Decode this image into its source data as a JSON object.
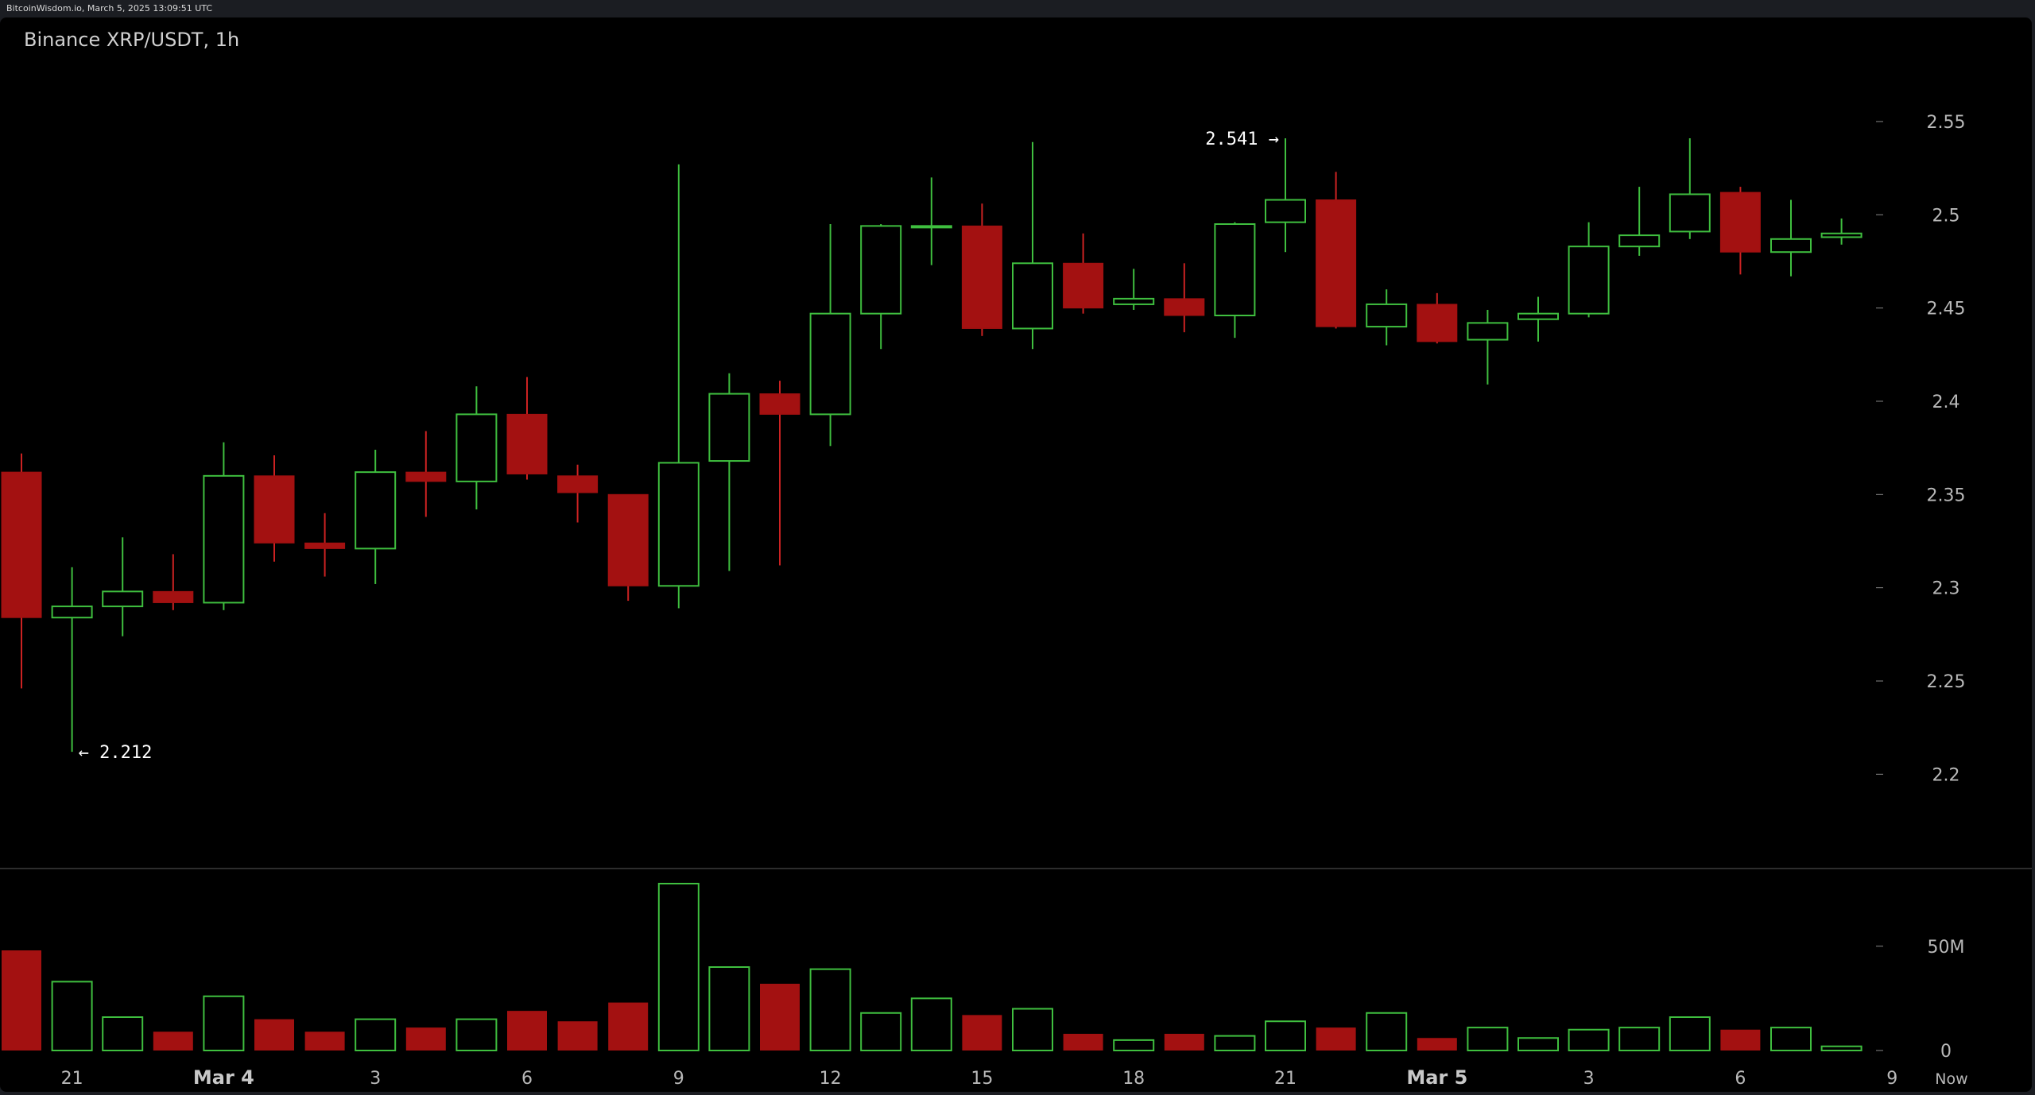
{
  "header": {
    "source": "BitcoinWisdom.io, March 5, 2025 13:09:51 UTC"
  },
  "chart_data": {
    "type": "candlestick",
    "title": "Binance XRP/USDT, 1h",
    "colors": {
      "up": "#3fbf3f",
      "down": "#a31111",
      "down_wick": "#cc2222",
      "axis_text": "#b8b8b8",
      "background": "#000000"
    },
    "ylim": [
      2.175,
      2.57
    ],
    "price_ticks": [
      {
        "value": 2.55,
        "label": "2.55"
      },
      {
        "value": 2.5,
        "label": "2.5"
      },
      {
        "value": 2.45,
        "label": "2.45"
      },
      {
        "value": 2.4,
        "label": "2.4"
      },
      {
        "value": 2.35,
        "label": "2.35"
      },
      {
        "value": 2.3,
        "label": "2.3"
      },
      {
        "value": 2.25,
        "label": "2.25"
      },
      {
        "value": 2.2,
        "label": "2.2"
      }
    ],
    "volume_ylim": [
      0,
      80
    ],
    "volume_ticks": [
      {
        "value": 50,
        "label": "50M"
      },
      {
        "value": 0,
        "label": "0"
      }
    ],
    "x_ticks": [
      {
        "index": 1,
        "label": "21",
        "bold": false
      },
      {
        "index": 4,
        "label": "Mar 4",
        "bold": true
      },
      {
        "index": 7,
        "label": "3",
        "bold": false
      },
      {
        "index": 10,
        "label": "6",
        "bold": false
      },
      {
        "index": 13,
        "label": "9",
        "bold": false
      },
      {
        "index": 16,
        "label": "12",
        "bold": false
      },
      {
        "index": 19,
        "label": "15",
        "bold": false
      },
      {
        "index": 22,
        "label": "18",
        "bold": false
      },
      {
        "index": 25,
        "label": "21",
        "bold": false
      },
      {
        "index": 28,
        "label": "Mar 5",
        "bold": true
      },
      {
        "index": 31,
        "label": "3",
        "bold": false
      },
      {
        "index": 34,
        "label": "6",
        "bold": false
      },
      {
        "index": 37,
        "label": "9",
        "bold": false
      }
    ],
    "now_label": "Now",
    "annotations": [
      {
        "index": 25,
        "value": 2.541,
        "text": "2.541 →",
        "side": "left"
      },
      {
        "index": 1,
        "value": 2.212,
        "text": "← 2.212",
        "side": "right"
      }
    ],
    "candles": [
      {
        "o": 2.362,
        "h": 2.372,
        "l": 2.246,
        "c": 2.284,
        "v": 48
      },
      {
        "o": 2.284,
        "h": 2.311,
        "l": 2.212,
        "c": 2.29,
        "v": 33
      },
      {
        "o": 2.29,
        "h": 2.327,
        "l": 2.274,
        "c": 2.298,
        "v": 16
      },
      {
        "o": 2.298,
        "h": 2.318,
        "l": 2.288,
        "c": 2.292,
        "v": 9
      },
      {
        "o": 2.292,
        "h": 2.378,
        "l": 2.288,
        "c": 2.36,
        "v": 26
      },
      {
        "o": 2.36,
        "h": 2.371,
        "l": 2.314,
        "c": 2.324,
        "v": 15
      },
      {
        "o": 2.324,
        "h": 2.34,
        "l": 2.306,
        "c": 2.321,
        "v": 9
      },
      {
        "o": 2.321,
        "h": 2.374,
        "l": 2.302,
        "c": 2.362,
        "v": 15
      },
      {
        "o": 2.362,
        "h": 2.384,
        "l": 2.338,
        "c": 2.357,
        "v": 11
      },
      {
        "o": 2.357,
        "h": 2.408,
        "l": 2.342,
        "c": 2.393,
        "v": 15
      },
      {
        "o": 2.393,
        "h": 2.413,
        "l": 2.358,
        "c": 2.361,
        "v": 19
      },
      {
        "o": 2.36,
        "h": 2.366,
        "l": 2.335,
        "c": 2.351,
        "v": 14
      },
      {
        "o": 2.35,
        "h": 2.35,
        "l": 2.293,
        "c": 2.301,
        "v": 23
      },
      {
        "o": 2.301,
        "h": 2.527,
        "l": 2.289,
        "c": 2.367,
        "v": 80
      },
      {
        "o": 2.368,
        "h": 2.415,
        "l": 2.309,
        "c": 2.404,
        "v": 40
      },
      {
        "o": 2.404,
        "h": 2.411,
        "l": 2.312,
        "c": 2.393,
        "v": 32
      },
      {
        "o": 2.393,
        "h": 2.495,
        "l": 2.376,
        "c": 2.447,
        "v": 39
      },
      {
        "o": 2.447,
        "h": 2.495,
        "l": 2.428,
        "c": 2.494,
        "v": 18
      },
      {
        "o": 2.494,
        "h": 2.52,
        "l": 2.473,
        "c": 2.494,
        "v": 25
      },
      {
        "o": 2.494,
        "h": 2.506,
        "l": 2.435,
        "c": 2.439,
        "v": 17
      },
      {
        "o": 2.439,
        "h": 2.539,
        "l": 2.428,
        "c": 2.474,
        "v": 20
      },
      {
        "o": 2.474,
        "h": 2.49,
        "l": 2.447,
        "c": 2.45,
        "v": 8
      },
      {
        "o": 2.452,
        "h": 2.471,
        "l": 2.449,
        "c": 2.455,
        "v": 5
      },
      {
        "o": 2.455,
        "h": 2.474,
        "l": 2.437,
        "c": 2.446,
        "v": 8
      },
      {
        "o": 2.446,
        "h": 2.496,
        "l": 2.434,
        "c": 2.495,
        "v": 7
      },
      {
        "o": 2.496,
        "h": 2.541,
        "l": 2.48,
        "c": 2.508,
        "v": 14
      },
      {
        "o": 2.508,
        "h": 2.523,
        "l": 2.439,
        "c": 2.44,
        "v": 11
      },
      {
        "o": 2.44,
        "h": 2.46,
        "l": 2.43,
        "c": 2.452,
        "v": 18
      },
      {
        "o": 2.452,
        "h": 2.458,
        "l": 2.431,
        "c": 2.432,
        "v": 6
      },
      {
        "o": 2.433,
        "h": 2.449,
        "l": 2.409,
        "c": 2.442,
        "v": 11
      },
      {
        "o": 2.444,
        "h": 2.456,
        "l": 2.432,
        "c": 2.447,
        "v": 6
      },
      {
        "o": 2.447,
        "h": 2.496,
        "l": 2.445,
        "c": 2.483,
        "v": 10
      },
      {
        "o": 2.483,
        "h": 2.515,
        "l": 2.478,
        "c": 2.489,
        "v": 11
      },
      {
        "o": 2.491,
        "h": 2.541,
        "l": 2.487,
        "c": 2.511,
        "v": 16
      },
      {
        "o": 2.512,
        "h": 2.515,
        "l": 2.468,
        "c": 2.48,
        "v": 10
      },
      {
        "o": 2.48,
        "h": 2.508,
        "l": 2.467,
        "c": 2.487,
        "v": 11
      },
      {
        "o": 2.488,
        "h": 2.498,
        "l": 2.484,
        "c": 2.49,
        "v": 2
      }
    ]
  }
}
